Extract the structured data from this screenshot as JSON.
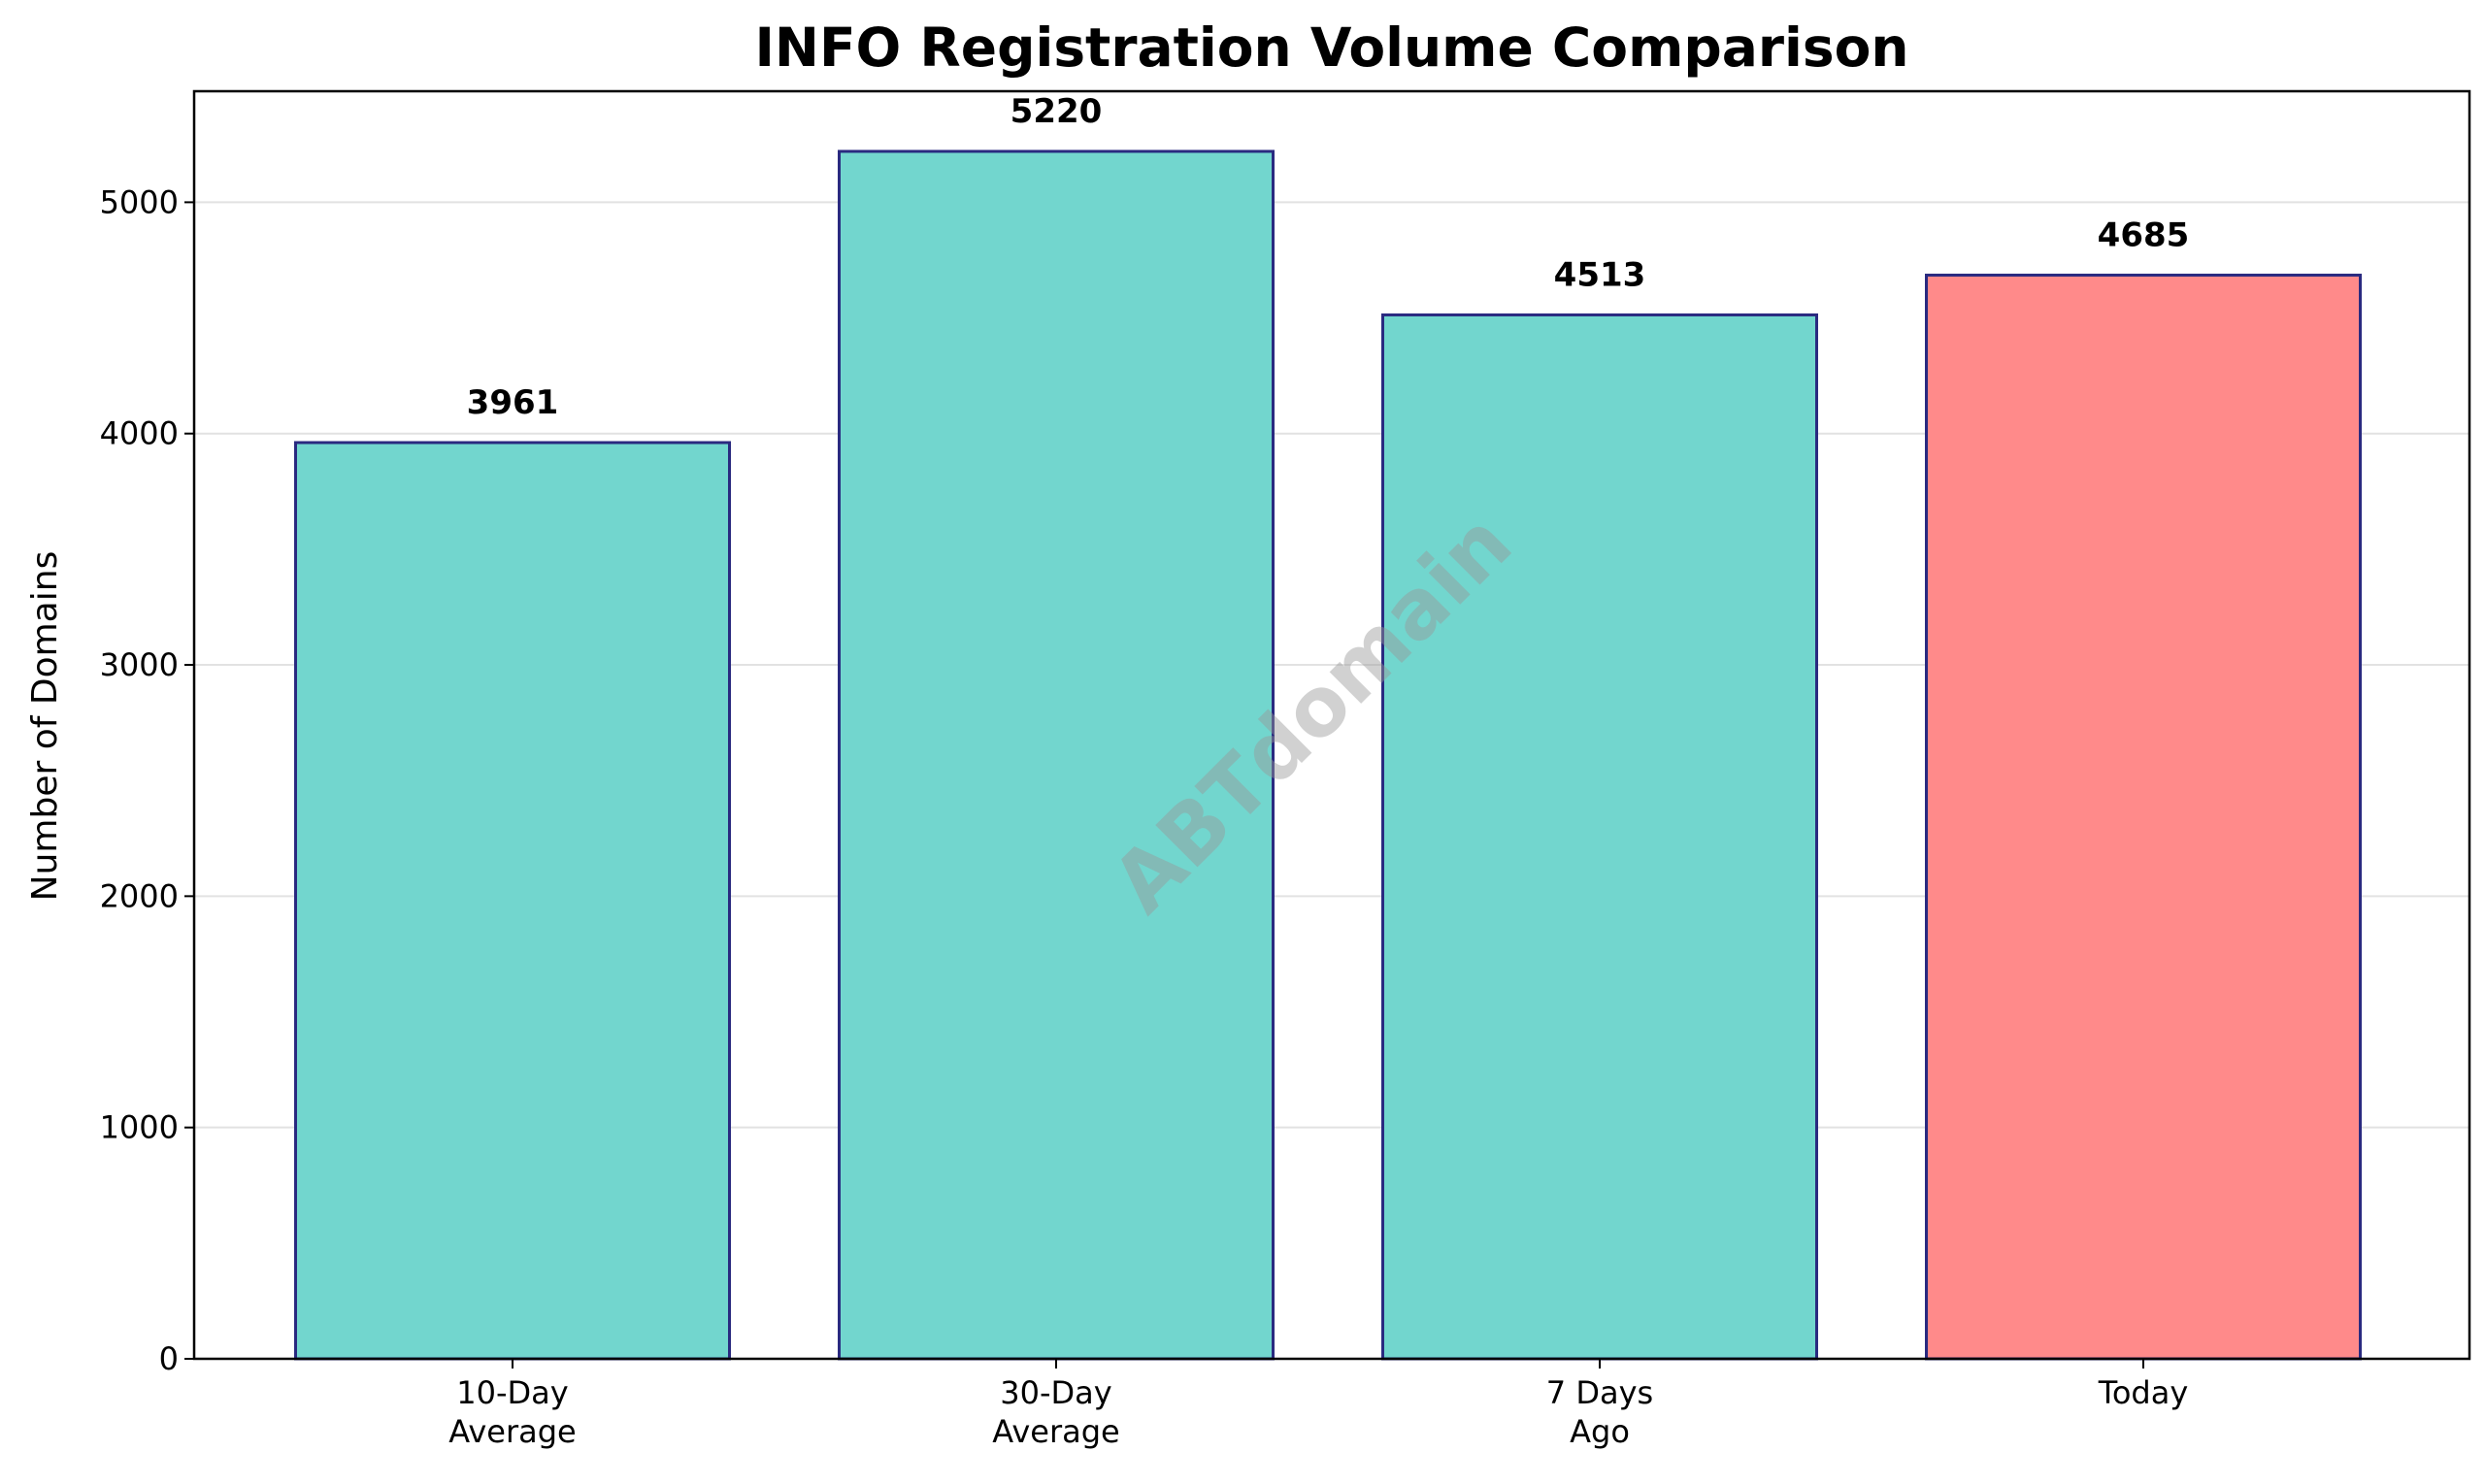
{
  "chart_data": {
    "type": "bar",
    "title": "INFO Registration Volume Comparison",
    "xlabel": "",
    "ylabel": "Number of Domains",
    "categories": [
      [
        "10-Day",
        "Average"
      ],
      [
        "30-Day",
        "Average"
      ],
      [
        "7 Days",
        "Ago"
      ],
      [
        "Today"
      ]
    ],
    "values": [
      3961,
      5220,
      4513,
      4685
    ],
    "value_labels": [
      "3961",
      "5220",
      "4513",
      "4685"
    ],
    "bar_colors": [
      "#72d6ce",
      "#72d6ce",
      "#72d6ce",
      "#ff8a8a"
    ],
    "bar_edge_color": "#2a2a80",
    "ylim": [
      0,
      5480
    ],
    "yticks": [
      0,
      1000,
      2000,
      3000,
      4000,
      5000
    ],
    "grid": "y",
    "legend": "none"
  },
  "watermark": "ABTdomain"
}
